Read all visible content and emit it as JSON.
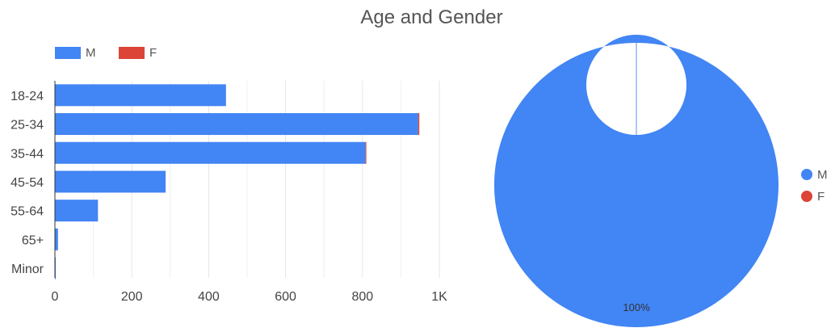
{
  "title": "Age and Gender",
  "colors": {
    "M": "#4285f4",
    "F": "#db4437"
  },
  "bar_legend": [
    {
      "label": "M",
      "color": "#4285f4"
    },
    {
      "label": "F",
      "color": "#db4437"
    }
  ],
  "pie_legend": [
    {
      "label": "M",
      "color": "#4285f4"
    },
    {
      "label": "F",
      "color": "#db4437"
    }
  ],
  "chart_data": [
    {
      "type": "bar",
      "orientation": "horizontal",
      "stacked": true,
      "title": "Age and Gender",
      "categories": [
        "18-24",
        "25-34",
        "35-44",
        "45-54",
        "55-64",
        "65+",
        "Minor"
      ],
      "series": [
        {
          "name": "M",
          "values": [
            445,
            945,
            808,
            288,
            112,
            8,
            1
          ]
        },
        {
          "name": "F",
          "values": [
            0,
            3,
            1,
            0,
            0,
            0,
            0
          ]
        }
      ],
      "xlim": [
        0,
        1000
      ],
      "x_ticks": [
        "0",
        "200",
        "400",
        "600",
        "800",
        "1K"
      ],
      "grid": true,
      "legend": "top-left"
    },
    {
      "type": "pie",
      "donut": true,
      "labels": [
        "M",
        "F"
      ],
      "values": [
        100,
        0
      ],
      "slice_label": "100%",
      "legend": "right"
    }
  ]
}
